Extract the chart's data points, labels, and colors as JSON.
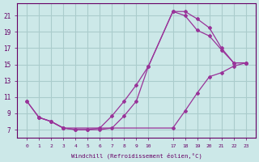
{
  "xlabel": "Windchill (Refroidissement éolien,°C)",
  "bg_color": "#cce8e8",
  "grid_color": "#aacccc",
  "line_color": "#993399",
  "line1_x": [
    0,
    1,
    2,
    3,
    4,
    5,
    6,
    7,
    8,
    9,
    10,
    17,
    18,
    19,
    20,
    21,
    22,
    23
  ],
  "line1_y": [
    10.5,
    8.5,
    8.0,
    7.2,
    7.0,
    7.0,
    7.0,
    7.2,
    8.7,
    10.5,
    14.8,
    21.5,
    21.5,
    20.6,
    19.5,
    17.0,
    15.2,
    15.2
  ],
  "line2_x": [
    0,
    1,
    2,
    3,
    4,
    5,
    6,
    7,
    8,
    9,
    10,
    17,
    18,
    19,
    20,
    21,
    22,
    23
  ],
  "line2_y": [
    10.5,
    8.5,
    8.0,
    7.2,
    7.0,
    7.0,
    7.2,
    8.7,
    10.5,
    12.5,
    14.8,
    21.5,
    21.0,
    19.2,
    18.5,
    16.8,
    15.2,
    15.2
  ],
  "line3_x": [
    1,
    2,
    3,
    17,
    18,
    19,
    20,
    21,
    22,
    23
  ],
  "line3_y": [
    8.5,
    8.0,
    7.2,
    7.2,
    9.3,
    11.5,
    13.5,
    14.0,
    14.8,
    15.2
  ],
  "xtick_labels": [
    "0",
    "1",
    "2",
    "3",
    "4",
    "5",
    "6",
    "7",
    "8",
    "9",
    "10",
    "",
    "",
    "",
    "",
    "",
    "17",
    "18",
    "19",
    "20",
    "21",
    "22",
    "23"
  ],
  "ytick_positions": [
    7,
    9,
    11,
    13,
    15,
    17,
    19,
    21
  ],
  "ytick_labels": [
    "7",
    "9",
    "11",
    "13",
    "15",
    "17",
    "19",
    "21"
  ],
  "ylim": [
    6.0,
    22.5
  ],
  "n_xpositions": 23
}
